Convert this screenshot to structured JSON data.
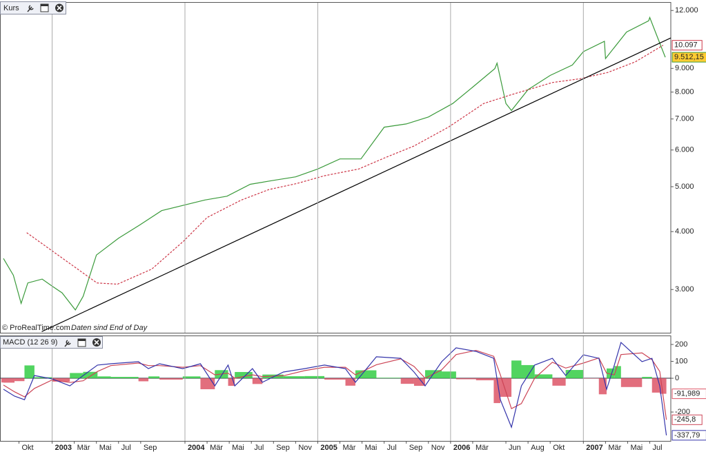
{
  "chart_data": [
    {
      "type": "line",
      "title": "Kurs",
      "log": true,
      "annotations": [
        "© ProRealTime.com",
        "Daten sind End of Day"
      ],
      "xlim": [
        -4.68,
        55.9
      ],
      "ylim": [
        2420,
        12470
      ],
      "yticks": [
        {
          "value": 3000,
          "label": "3.000"
        },
        {
          "value": 4000,
          "label": "4.000"
        },
        {
          "value": 5000,
          "label": "5.000"
        },
        {
          "value": 6000,
          "label": "6.000"
        },
        {
          "value": 7000,
          "label": "7.000"
        },
        {
          "value": 8000,
          "label": "8.000"
        },
        {
          "value": 9000,
          "label": "9.000"
        },
        {
          "value": 12000,
          "label": "12.000"
        }
      ],
      "series": [
        {
          "color": "#3a9a3a",
          "style": "solid",
          "x": [
            -4.4,
            -3.5,
            -2.8,
            -2.2,
            -0.9,
            0,
            0.9,
            2.1,
            2.8,
            4,
            6,
            7.9,
            9.9,
            13.8,
            15.8,
            17.9,
            20,
            22,
            24,
            26,
            27.9,
            30,
            32,
            34,
            36.2,
            38,
            40,
            40.2,
            41,
            41.5,
            43,
            45,
            47,
            48,
            49.9,
            50,
            51.9,
            53.9,
            54,
            55.4
          ],
          "values": [
            3500,
            3220,
            2800,
            3100,
            3160,
            3050,
            2950,
            2710,
            2900,
            3560,
            3870,
            4130,
            4440,
            4680,
            4770,
            5060,
            5160,
            5250,
            5460,
            5740,
            5740,
            6720,
            6830,
            7070,
            7560,
            8200,
            8990,
            9240,
            7560,
            7300,
            8100,
            8690,
            9150,
            9780,
            10300,
            9450,
            10780,
            11400,
            11590,
            9512.15
          ],
          "value_labels": [
            null,
            null,
            null,
            null,
            null,
            null,
            null,
            null,
            null,
            null,
            null,
            null,
            null,
            null,
            null,
            null,
            null,
            null,
            null,
            null,
            null,
            null,
            null,
            null,
            null,
            null,
            null,
            null,
            null,
            null,
            null,
            null,
            null,
            null,
            null,
            null,
            null,
            null,
            null,
            "9.512,15"
          ]
        },
        {
          "color": "#cc3344",
          "style": "dashed",
          "x": [
            -2.3,
            4.05,
            5.9,
            9.0,
            11.85,
            14.0,
            17.1,
            19.6,
            22.1,
            24.6,
            27.7,
            30.2,
            32.7,
            35.8,
            39.0,
            41.5,
            45.2,
            47.7,
            50.2,
            52.7,
            55.2
          ],
          "values": [
            3980,
            3100,
            3080,
            3320,
            3810,
            4290,
            4680,
            4930,
            5080,
            5280,
            5460,
            5790,
            6120,
            6720,
            7560,
            7900,
            8390,
            8550,
            8820,
            9300,
            10097
          ],
          "value_labels": [
            null,
            null,
            null,
            null,
            null,
            null,
            null,
            null,
            null,
            null,
            null,
            null,
            null,
            null,
            null,
            null,
            null,
            null,
            null,
            null,
            "10.097"
          ]
        },
        {
          "color": "#000000",
          "style": "solid",
          "x": [
            -0.94,
            55.9
          ],
          "values": [
            2434,
            10470
          ]
        }
      ]
    },
    {
      "type": "line",
      "title": "MACD (12 26 9)",
      "xlim": [
        -4.68,
        55.9
      ],
      "ylim": [
        -371,
        249
      ],
      "yticks": [
        -200,
        0,
        100,
        200
      ],
      "xticks": [
        {
          "value": -3,
          "label": "Okt"
        },
        {
          "value": 0,
          "label": "2003"
        },
        {
          "value": 2,
          "label": "Mär"
        },
        {
          "value": 4,
          "label": "Mai"
        },
        {
          "value": 6,
          "label": "Jul"
        },
        {
          "value": 8,
          "label": "Sep"
        },
        {
          "value": 12,
          "label": "2004"
        },
        {
          "value": 14,
          "label": "Mär"
        },
        {
          "value": 16,
          "label": "Mai"
        },
        {
          "value": 18,
          "label": "Jul"
        },
        {
          "value": 20,
          "label": "Sep"
        },
        {
          "value": 22,
          "label": "Nov"
        },
        {
          "value": 24,
          "label": "2005"
        },
        {
          "value": 26,
          "label": "Mär"
        },
        {
          "value": 28,
          "label": "Mai"
        },
        {
          "value": 30,
          "label": "Jul"
        },
        {
          "value": 32,
          "label": "Sep"
        },
        {
          "value": 34,
          "label": "Nov"
        },
        {
          "value": 36,
          "label": "2006"
        },
        {
          "value": 38,
          "label": "Mär"
        },
        {
          "value": 41,
          "label": "Jun"
        },
        {
          "value": 43,
          "label": "Aug"
        },
        {
          "value": 45,
          "label": "Okt"
        },
        {
          "value": 48,
          "label": "2007"
        },
        {
          "value": 50,
          "label": "Mär"
        },
        {
          "value": 52,
          "label": "Mai"
        },
        {
          "value": 54,
          "label": "Jul"
        }
      ],
      "series": [
        {
          "color": "#33cc44",
          "negative_color": "#dd5566",
          "style": "histogram",
          "x": [
            -4.4,
            -3.4,
            -2.5,
            -1.6,
            0,
            1.6,
            2.8,
            4.1,
            5.3,
            7.8,
            8.7,
            9.7,
            11.8,
            13.4,
            14.7,
            15.9,
            16.5,
            18.1,
            19.0,
            20.9,
            22.8,
            24.6,
            26.5,
            27.4,
            29.3,
            31.5,
            32.7,
            33.7,
            35.2,
            36.5,
            38.3,
            39.9,
            40.5,
            41.5,
            42.4,
            43.6,
            45.2,
            46.4,
            48.0,
            49.4,
            50.1,
            50.8,
            51.4,
            53.3,
            54.2,
            54.9,
            55.5
          ],
          "values": [
            -25,
            -26,
            -17,
            76,
            6,
            -20,
            31,
            38,
            11,
            8,
            -18,
            11,
            -8,
            11,
            -65,
            48,
            -45,
            37,
            -34,
            22,
            12,
            13,
            -8,
            -44,
            47,
            3,
            -33,
            -45,
            48,
            40,
            -6,
            -12,
            -147,
            -110,
            105,
            78,
            23,
            -44,
            49,
            -2,
            -95,
            58,
            72,
            -52,
            8,
            -85,
            -91.989
          ],
          "value_labels": [
            null,
            null,
            null,
            null,
            null,
            null,
            null,
            null,
            null,
            null,
            null,
            null,
            null,
            null,
            null,
            null,
            null,
            null,
            null,
            null,
            null,
            null,
            null,
            null,
            null,
            null,
            null,
            null,
            null,
            null,
            null,
            null,
            null,
            null,
            null,
            null,
            null,
            null,
            null,
            null,
            null,
            null,
            null,
            null,
            null,
            null,
            "-91,989"
          ]
        },
        {
          "color": "#cc4455",
          "style": "solid",
          "x": [
            -4.4,
            -3.4,
            -2.5,
            -1.6,
            0,
            1.6,
            2.8,
            4.1,
            5.3,
            7.8,
            8.7,
            9.7,
            11.8,
            13.4,
            14.7,
            15.9,
            16.5,
            18.1,
            19.0,
            20.9,
            22.8,
            24.6,
            26.5,
            27.4,
            29.3,
            31.5,
            32.7,
            33.7,
            35.2,
            36.5,
            38.3,
            39.9,
            40.5,
            41.5,
            42.4,
            43.6,
            45.2,
            46.4,
            48.0,
            49.4,
            50.1,
            50.8,
            51.4,
            53.3,
            54.2,
            54.9,
            55.5
          ],
          "values": [
            -40,
            -80,
            -110,
            -60,
            -10,
            -25,
            -15,
            40,
            75,
            90,
            75,
            75,
            65,
            75,
            20,
            30,
            0,
            20,
            10,
            15,
            45,
            65,
            65,
            20,
            80,
            115,
            70,
            0,
            50,
            140,
            165,
            130,
            20,
            -180,
            -150,
            0,
            95,
            60,
            90,
            120,
            30,
            20,
            140,
            150,
            110,
            40,
            -245.8
          ],
          "value_labels": [
            null,
            null,
            null,
            null,
            null,
            null,
            null,
            null,
            null,
            null,
            null,
            null,
            null,
            null,
            null,
            null,
            null,
            null,
            null,
            null,
            null,
            null,
            null,
            null,
            null,
            null,
            null,
            null,
            null,
            null,
            null,
            null,
            null,
            null,
            null,
            null,
            null,
            null,
            null,
            null,
            null,
            null,
            null,
            null,
            null,
            null,
            "-245,8"
          ]
        },
        {
          "color": "#3333aa",
          "style": "solid",
          "x": [
            -4.4,
            -3.4,
            -2.5,
            -1.6,
            0,
            1.6,
            2.8,
            4.1,
            5.3,
            7.8,
            8.7,
            9.7,
            11.8,
            13.4,
            14.7,
            15.9,
            16.5,
            18.1,
            19.0,
            20.9,
            22.8,
            24.6,
            26.5,
            27.4,
            29.3,
            31.5,
            32.7,
            33.7,
            35.2,
            36.5,
            38.3,
            39.9,
            40.5,
            41.5,
            42.4,
            43.6,
            45.2,
            46.4,
            48.0,
            49.4,
            50.1,
            50.8,
            51.4,
            53.3,
            54.2,
            54.9,
            55.5
          ],
          "values": [
            -65,
            -106,
            -127,
            16,
            -4,
            -45,
            16,
            78,
            86,
            98,
            57,
            86,
            57,
            86,
            -45,
            78,
            -45,
            57,
            -24,
            37,
            57,
            78,
            57,
            -24,
            127,
            118,
            37,
            -45,
            98,
            180,
            159,
            118,
            -127,
            -290,
            -45,
            78,
            118,
            16,
            139,
            118,
            -65,
            78,
            212,
            98,
            118,
            -45,
            -337.79
          ],
          "value_labels": [
            null,
            null,
            null,
            null,
            null,
            null,
            null,
            null,
            null,
            null,
            null,
            null,
            null,
            null,
            null,
            null,
            null,
            null,
            null,
            null,
            null,
            null,
            null,
            null,
            null,
            null,
            null,
            null,
            null,
            null,
            null,
            null,
            null,
            null,
            null,
            null,
            null,
            null,
            null,
            null,
            null,
            null,
            null,
            null,
            null,
            null,
            "-337,79"
          ]
        }
      ]
    }
  ]
}
